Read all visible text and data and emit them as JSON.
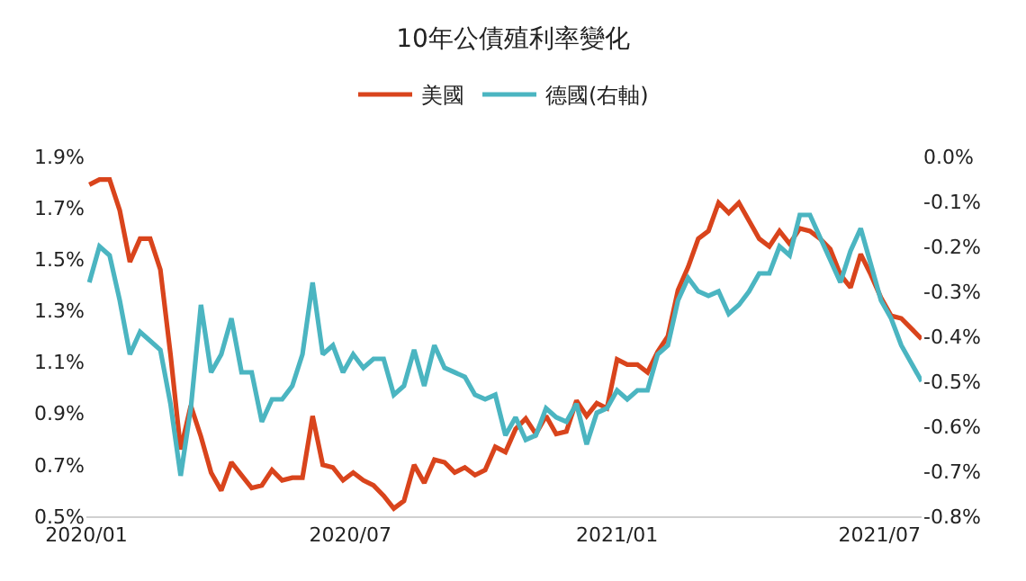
{
  "chart_data": {
    "type": "line",
    "title": "10年公債殖利率變化",
    "legend": "top",
    "x": [
      "2020-01-03",
      "2020-01-10",
      "2020-01-17",
      "2020-01-24",
      "2020-01-31",
      "2020-02-07",
      "2020-02-14",
      "2020-02-21",
      "2020-02-28",
      "2020-03-06",
      "2020-03-13",
      "2020-03-20",
      "2020-03-27",
      "2020-04-03",
      "2020-04-10",
      "2020-04-17",
      "2020-04-24",
      "2020-05-01",
      "2020-05-08",
      "2020-05-15",
      "2020-05-22",
      "2020-05-29",
      "2020-06-05",
      "2020-06-12",
      "2020-06-19",
      "2020-06-26",
      "2020-07-03",
      "2020-07-10",
      "2020-07-17",
      "2020-07-24",
      "2020-07-31",
      "2020-08-07",
      "2020-08-14",
      "2020-08-21",
      "2020-08-28",
      "2020-09-04",
      "2020-09-11",
      "2020-09-18",
      "2020-09-25",
      "2020-10-02",
      "2020-10-09",
      "2020-10-16",
      "2020-10-23",
      "2020-10-30",
      "2020-11-06",
      "2020-11-13",
      "2020-11-20",
      "2020-11-27",
      "2020-12-04",
      "2020-12-11",
      "2020-12-18",
      "2020-12-25",
      "2021-01-01",
      "2021-01-08",
      "2021-01-15",
      "2021-01-22",
      "2021-01-29",
      "2021-02-05",
      "2021-02-12",
      "2021-02-19",
      "2021-02-26",
      "2021-03-05",
      "2021-03-12",
      "2021-03-19",
      "2021-03-26",
      "2021-04-02",
      "2021-04-09",
      "2021-04-16",
      "2021-04-23",
      "2021-04-30",
      "2021-05-07",
      "2021-05-14",
      "2021-05-21",
      "2021-05-28",
      "2021-06-04",
      "2021-06-11",
      "2021-06-18",
      "2021-06-25",
      "2021-07-02",
      "2021-07-09",
      "2021-07-16",
      "2021-07-23",
      "2021-07-30"
    ],
    "series": [
      {
        "name": "美國",
        "color": "#d9441c",
        "values": [
          1.79,
          1.81,
          1.81,
          1.69,
          1.49,
          1.58,
          1.58,
          1.46,
          1.13,
          0.76,
          0.93,
          0.81,
          0.67,
          0.6,
          0.71,
          0.66,
          0.61,
          0.62,
          0.68,
          0.64,
          0.65,
          0.65,
          0.89,
          0.7,
          0.69,
          0.64,
          0.67,
          0.64,
          0.62,
          0.58,
          0.53,
          0.56,
          0.7,
          0.63,
          0.72,
          0.71,
          0.67,
          0.69,
          0.66,
          0.68,
          0.77,
          0.75,
          0.84,
          0.88,
          0.82,
          0.89,
          0.82,
          0.83,
          0.95,
          0.89,
          0.94,
          0.92,
          1.11,
          1.09,
          1.09,
          1.06,
          1.14,
          1.2,
          1.38,
          1.47,
          1.58,
          1.61,
          1.72,
          1.68,
          1.72,
          1.65,
          1.58,
          1.55,
          1.61,
          1.56,
          1.62,
          1.61,
          1.58,
          1.54,
          1.44,
          1.39,
          1.52,
          1.44,
          1.35,
          1.28,
          1.27,
          1.23,
          1.19
        ]
      },
      {
        "name": "德國(右軸)",
        "color": "#4bb5c1",
        "axis": "y2",
        "values": [
          -0.28,
          -0.2,
          -0.22,
          -0.32,
          -0.44,
          -0.39,
          -0.41,
          -0.43,
          -0.55,
          -0.71,
          -0.56,
          -0.33,
          -0.48,
          -0.44,
          -0.36,
          -0.48,
          -0.48,
          -0.59,
          -0.54,
          -0.54,
          -0.51,
          -0.44,
          -0.28,
          -0.44,
          -0.42,
          -0.48,
          -0.44,
          -0.47,
          -0.45,
          -0.45,
          -0.53,
          -0.51,
          -0.43,
          -0.51,
          -0.42,
          -0.47,
          -0.48,
          -0.49,
          -0.53,
          -0.54,
          -0.53,
          -0.62,
          -0.58,
          -0.63,
          -0.62,
          -0.56,
          -0.58,
          -0.59,
          -0.55,
          -0.64,
          -0.57,
          -0.56,
          -0.52,
          -0.54,
          -0.52,
          -0.52,
          -0.44,
          -0.42,
          -0.32,
          -0.27,
          -0.3,
          -0.31,
          -0.3,
          -0.35,
          -0.33,
          -0.3,
          -0.26,
          -0.26,
          -0.2,
          -0.22,
          -0.13,
          -0.13,
          -0.18,
          -0.23,
          -0.28,
          -0.21,
          -0.16,
          -0.24,
          -0.32,
          -0.36,
          -0.42,
          -0.46,
          -0.5
        ]
      }
    ],
    "xlim": [
      "2020-01-01",
      "2021-07-30"
    ],
    "xticks": [
      {
        "value": "2020-01-01",
        "label": "2020/01"
      },
      {
        "value": "2020-07-01",
        "label": "2020/07"
      },
      {
        "value": "2021-01-01",
        "label": "2021/01"
      },
      {
        "value": "2021-07-01",
        "label": "2021/07"
      }
    ],
    "ylim": [
      0.5,
      1.9
    ],
    "yticks": [
      {
        "value": 0.5,
        "label": "0.5%"
      },
      {
        "value": 0.7,
        "label": "0.7%"
      },
      {
        "value": 0.9,
        "label": "0.9%"
      },
      {
        "value": 1.1,
        "label": "1.1%"
      },
      {
        "value": 1.3,
        "label": "1.3%"
      },
      {
        "value": 1.5,
        "label": "1.5%"
      },
      {
        "value": 1.7,
        "label": "1.7%"
      },
      {
        "value": 1.9,
        "label": "1.9%"
      }
    ],
    "y2lim": [
      -0.8,
      0.0
    ],
    "y2ticks": [
      {
        "value": -0.8,
        "label": "-0.8%"
      },
      {
        "value": -0.7,
        "label": "-0.7%"
      },
      {
        "value": -0.6,
        "label": "-0.6%"
      },
      {
        "value": -0.5,
        "label": "-0.5%"
      },
      {
        "value": -0.4,
        "label": "-0.4%"
      },
      {
        "value": -0.3,
        "label": "-0.3%"
      },
      {
        "value": -0.2,
        "label": "-0.2%"
      },
      {
        "value": -0.1,
        "label": "-0.1%"
      },
      {
        "value": 0.0,
        "label": "0.0%"
      }
    ],
    "marker": "none",
    "line_style": "solid"
  }
}
